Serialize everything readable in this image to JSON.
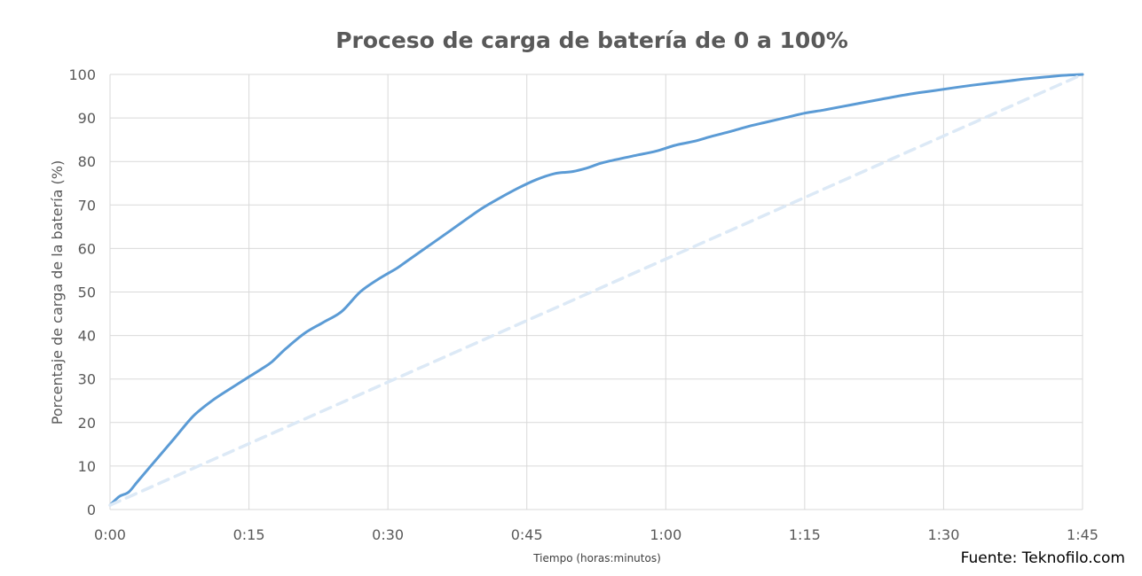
{
  "chart_data": {
    "type": "line",
    "title": "Proceso de carga de batería de 0 a 100%",
    "xlabel": "Tiempo (horas:minutos)",
    "ylabel": "Porcentaje de carga de la batería (%)",
    "x_unit": "minutes",
    "xlim": [
      0,
      105
    ],
    "ylim": [
      0,
      100
    ],
    "x_ticks": [
      0,
      15,
      30,
      45,
      60,
      75,
      90,
      105
    ],
    "x_tick_labels": [
      "0:00",
      "0:15",
      "0:30",
      "0:45",
      "1:00",
      "1:15",
      "1:30",
      "1:45"
    ],
    "y_ticks": [
      0,
      10,
      20,
      30,
      40,
      50,
      60,
      70,
      80,
      90,
      100
    ],
    "grid": true,
    "series": [
      {
        "style": "solid",
        "color": "#5b9bd5",
        "x": [
          0,
          1,
          2,
          3,
          5,
          7,
          9,
          11,
          13,
          15,
          16.5,
          17.5,
          19,
          21,
          23,
          25,
          27,
          29,
          31,
          32,
          34,
          36,
          38,
          40,
          42,
          44,
          46,
          48,
          50,
          51.5,
          53,
          55,
          57,
          59,
          61,
          63,
          65,
          67,
          69,
          71,
          73,
          75,
          77,
          79,
          81,
          83,
          85,
          87,
          89,
          91,
          93,
          95,
          97,
          99,
          101,
          103,
          105
        ],
        "y": [
          1,
          3,
          4,
          6.5,
          11.5,
          16.5,
          21.5,
          25,
          27.8,
          30.5,
          32.5,
          34,
          37,
          40.5,
          43,
          45.5,
          50,
          53,
          55.5,
          57,
          60,
          63,
          66,
          69,
          71.5,
          73.8,
          75.8,
          77.2,
          77.7,
          78.5,
          79.6,
          80.6,
          81.5,
          82.4,
          83.7,
          84.6,
          85.8,
          86.9,
          88.1,
          89.1,
          90.1,
          91.1,
          91.8,
          92.6,
          93.4,
          94.2,
          95,
          95.7,
          96.3,
          96.9,
          97.5,
          98,
          98.5,
          99,
          99.4,
          99.8,
          100
        ]
      },
      {
        "style": "dashed",
        "color": "#dce9f6",
        "x": [
          0,
          105
        ],
        "y": [
          1,
          100
        ]
      }
    ]
  },
  "source": "Fuente: Teknofilo.com"
}
